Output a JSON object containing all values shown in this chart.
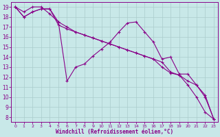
{
  "bg_color": "#c8e8e8",
  "line_color": "#880088",
  "grid_color": "#aacccc",
  "xlabel": "Windchill (Refroidissement éolien,°C)",
  "xlim": [
    -0.5,
    23.5
  ],
  "ylim": [
    7.5,
    19.5
  ],
  "xticks": [
    0,
    1,
    2,
    3,
    4,
    5,
    6,
    7,
    8,
    9,
    10,
    11,
    12,
    13,
    14,
    15,
    16,
    17,
    18,
    19,
    20,
    21,
    22,
    23
  ],
  "yticks": [
    8,
    9,
    10,
    11,
    12,
    13,
    14,
    15,
    16,
    17,
    18,
    19
  ],
  "series": [
    [
      19.0,
      18.0,
      18.5,
      18.8,
      18.8,
      17.2,
      16.8,
      16.5,
      16.2,
      15.9,
      15.6,
      15.3,
      15.0,
      14.7,
      14.4,
      14.1,
      13.8,
      13.5,
      12.5,
      12.2,
      11.2,
      10.0,
      8.5,
      7.8
    ],
    [
      19.0,
      18.5,
      19.0,
      19.0,
      18.3,
      17.5,
      11.6,
      13.0,
      13.3,
      14.1,
      14.8,
      15.5,
      16.5,
      17.4,
      17.5,
      16.5,
      15.5,
      13.8,
      14.0,
      12.3,
      12.3,
      11.2,
      10.0,
      7.8
    ],
    [
      19.0,
      18.0,
      18.5,
      18.8,
      18.8,
      17.5,
      17.0,
      16.5,
      16.2,
      15.9,
      15.6,
      15.3,
      15.0,
      14.7,
      14.4,
      14.1,
      13.8,
      13.0,
      12.4,
      12.2,
      11.6,
      11.2,
      10.2,
      7.8
    ]
  ]
}
